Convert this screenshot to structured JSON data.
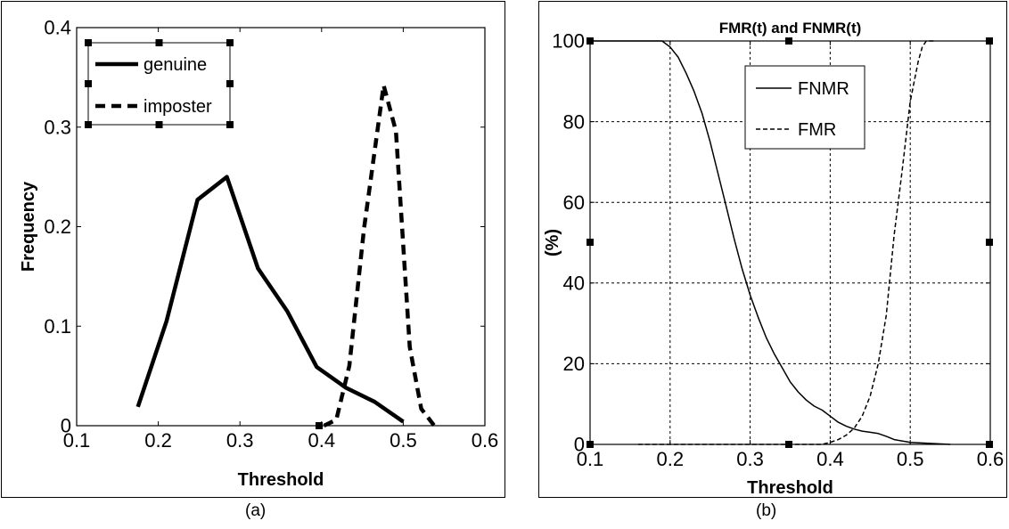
{
  "chart_data": [
    {
      "type": "line",
      "caption": "(a)",
      "title": "",
      "xlabel": "Threshold",
      "ylabel": "Frequency",
      "xlim": [
        0.1,
        0.6
      ],
      "ylim": [
        0,
        0.4
      ],
      "xticks": [
        "0.1",
        "0.2",
        "0.3",
        "0.4",
        "0.5",
        "0.6"
      ],
      "yticks": [
        "0",
        "0.1",
        "0.2",
        "0.3",
        "0.4"
      ],
      "grid": false,
      "legend_position": "top-left",
      "series": [
        {
          "name": "genuine",
          "style": "solid",
          "color": "#000000",
          "x": [
            0.175,
            0.21,
            0.248,
            0.284,
            0.322,
            0.358,
            0.394,
            0.43,
            0.465,
            0.5
          ],
          "y": [
            0.019,
            0.105,
            0.227,
            0.25,
            0.158,
            0.115,
            0.059,
            0.038,
            0.024,
            0.004
          ]
        },
        {
          "name": "imposter",
          "style": "dashed",
          "color": "#000000",
          "x": [
            0.403,
            0.418,
            0.434,
            0.452,
            0.476,
            0.491,
            0.508,
            0.522,
            0.538
          ],
          "y": [
            0,
            0.006,
            0.06,
            0.198,
            0.342,
            0.296,
            0.079,
            0.017,
            0
          ]
        }
      ]
    },
    {
      "type": "line",
      "caption": "(b)",
      "title": "FMR(t) and FNMR(t)",
      "xlabel": "Threshold",
      "ylabel": "(%)",
      "xlim": [
        0.1,
        0.6
      ],
      "ylim": [
        0,
        100
      ],
      "xticks": [
        "0.1",
        "0.2",
        "0.3",
        "0.4",
        "0.5",
        "0.6"
      ],
      "yticks": [
        "0",
        "20",
        "40",
        "60",
        "80",
        "100"
      ],
      "grid": true,
      "legend_position": "top-center",
      "series": [
        {
          "name": "FNMR",
          "style": "solid",
          "color": "#000000",
          "x": [
            0.1,
            0.19,
            0.2,
            0.21,
            0.22,
            0.23,
            0.24,
            0.25,
            0.26,
            0.27,
            0.28,
            0.29,
            0.3,
            0.31,
            0.32,
            0.33,
            0.34,
            0.35,
            0.36,
            0.37,
            0.38,
            0.39,
            0.4,
            0.41,
            0.42,
            0.43,
            0.44,
            0.45,
            0.46,
            0.47,
            0.48,
            0.5,
            0.55
          ],
          "y": [
            100,
            100,
            98.5,
            96,
            92,
            87.5,
            82,
            75,
            67,
            59,
            51,
            43.5,
            37,
            31.5,
            26.5,
            22.5,
            19,
            15.5,
            13,
            11,
            9.5,
            8.5,
            7,
            5.5,
            4.5,
            3.8,
            3.3,
            3,
            2.7,
            2,
            1.2,
            0.5,
            0
          ]
        },
        {
          "name": "FMR",
          "style": "dashed",
          "color": "#000000",
          "x": [
            0.16,
            0.39,
            0.4,
            0.41,
            0.42,
            0.43,
            0.44,
            0.45,
            0.46,
            0.47,
            0.48,
            0.49,
            0.5,
            0.51,
            0.515,
            0.52,
            0.53
          ],
          "y": [
            0,
            0,
            0.5,
            1.2,
            2.3,
            4,
            7,
            12,
            20,
            32,
            52,
            68,
            85,
            95,
            98.5,
            100,
            100
          ]
        }
      ]
    }
  ]
}
